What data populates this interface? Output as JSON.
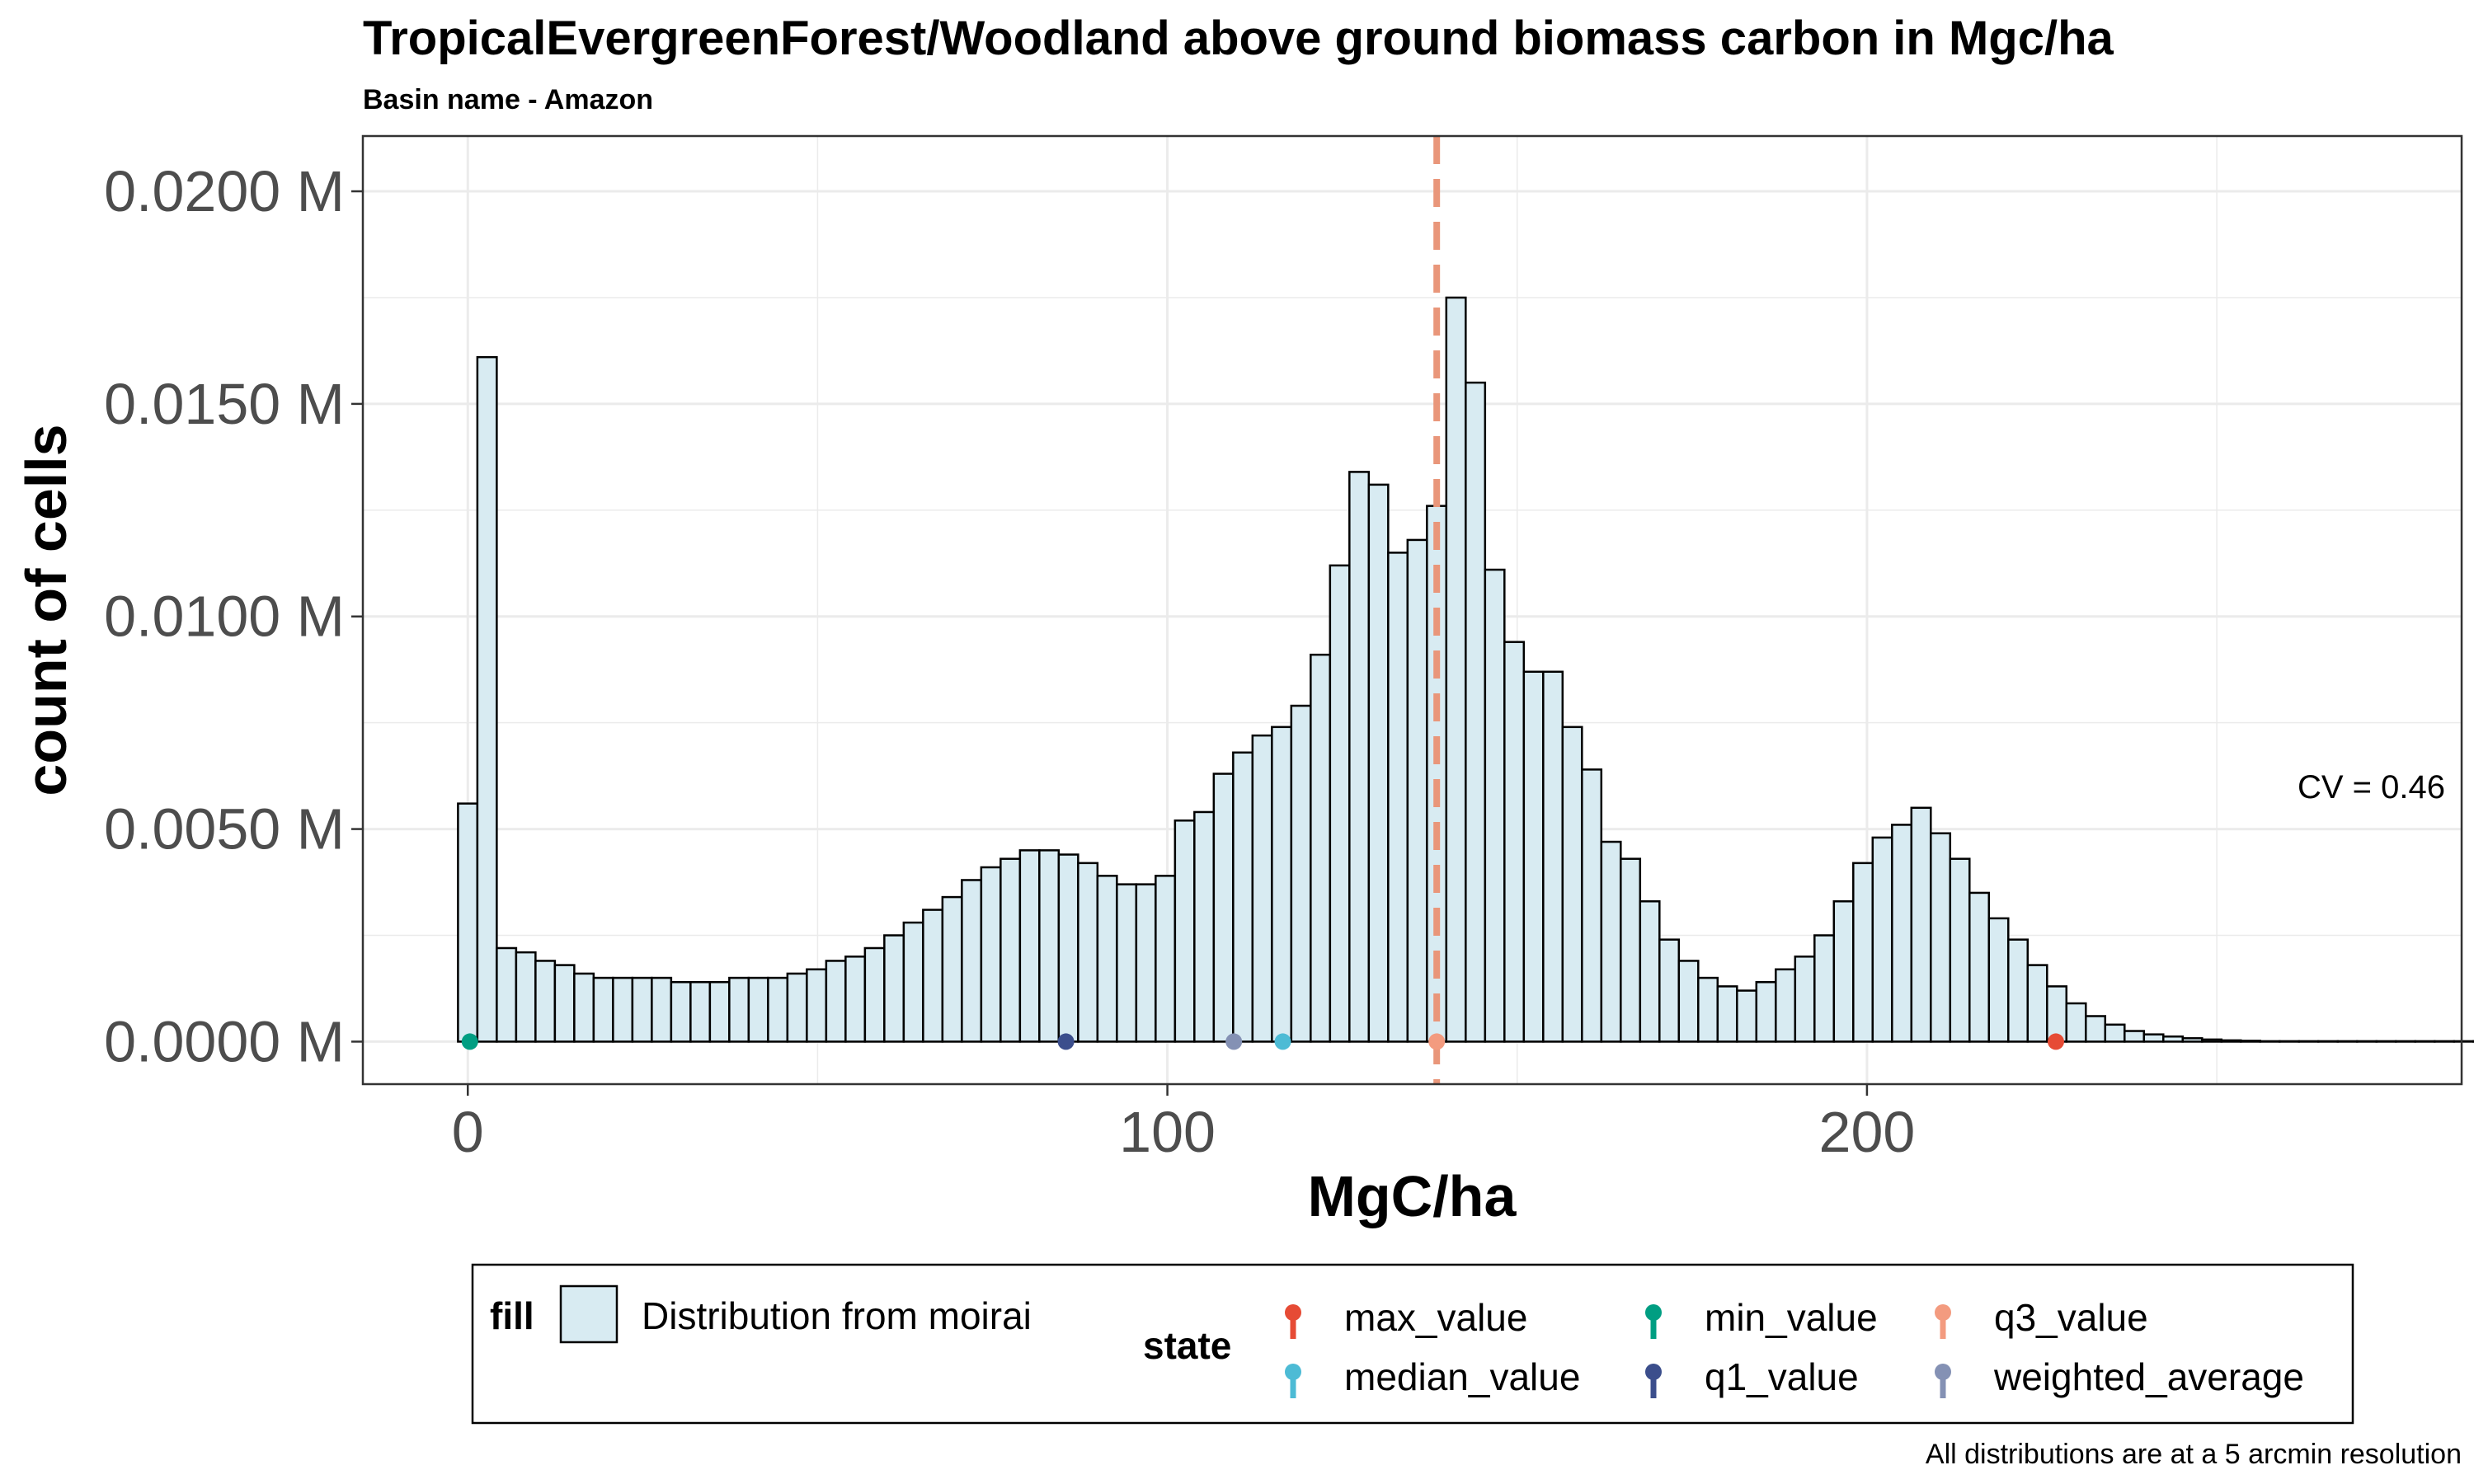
{
  "chart_data": {
    "type": "histogram",
    "title": "TropicalEvergreenForest/Woodland above ground biomass carbon in Mgc/ha",
    "subtitle": "Basin name - Amazon",
    "xlabel": "MgC/ha",
    "ylabel": "count of cells",
    "xlim": [
      -15,
      285
    ],
    "ylim": [
      -0.001,
      0.0213
    ],
    "x_ticks": [
      0,
      100,
      200
    ],
    "x_tick_labels": [
      "0",
      "100",
      "200"
    ],
    "y_ticks": [
      0,
      0.005,
      0.01,
      0.015,
      0.02
    ],
    "y_tick_labels": [
      "0.0000 M",
      "0.0050 M",
      "0.0100 M",
      "0.0150 M",
      "0.0200 M"
    ],
    "grid": true,
    "bin_start": -1.4,
    "bin_width": 2.77,
    "fill_color": "#d8ebf2",
    "series": [
      {
        "name": "Distribution from moirai",
        "values": [
          0.0056,
          0.0161,
          0.0022,
          0.0021,
          0.0019,
          0.0018,
          0.0016,
          0.0015,
          0.0015,
          0.0015,
          0.0015,
          0.0014,
          0.0014,
          0.0014,
          0.0015,
          0.0015,
          0.0015,
          0.0016,
          0.0017,
          0.0019,
          0.002,
          0.0022,
          0.0025,
          0.0028,
          0.0031,
          0.0034,
          0.0038,
          0.0041,
          0.0043,
          0.0045,
          0.0045,
          0.0044,
          0.0042,
          0.0039,
          0.0037,
          0.0037,
          0.0039,
          0.0052,
          0.0054,
          0.0063,
          0.0068,
          0.0072,
          0.0074,
          0.0079,
          0.0091,
          0.0112,
          0.0134,
          0.0131,
          0.0115,
          0.0118,
          0.0126,
          0.0175,
          0.0155,
          0.0111,
          0.0094,
          0.0087,
          0.0087,
          0.0074,
          0.0064,
          0.0047,
          0.0043,
          0.0033,
          0.0024,
          0.0019,
          0.0015,
          0.0013,
          0.0012,
          0.0014,
          0.0017,
          0.002,
          0.0025,
          0.0033,
          0.0042,
          0.0048,
          0.0051,
          0.0055,
          0.0049,
          0.0043,
          0.0035,
          0.0029,
          0.0024,
          0.0018,
          0.0013,
          0.0009,
          0.0006,
          0.0004,
          0.00025,
          0.00017,
          0.00012,
          8e-05,
          5e-05,
          3e-05,
          2e-05,
          1e-05,
          1e-05,
          1e-05,
          1e-05,
          1e-05,
          1e-05,
          1e-05,
          1e-05,
          1e-05,
          1e-05,
          1e-05,
          1e-05,
          1e-05,
          1e-05,
          1e-05,
          1e-05,
          1e-05,
          1e-05,
          1e-05,
          1e-05,
          1e-05,
          1e-05,
          1e-05,
          1e-05,
          1e-05,
          1e-05,
          1e-05,
          1e-05,
          1e-05,
          1e-05,
          1e-05,
          1e-05,
          1e-05,
          1e-05,
          1e-05,
          1e-05,
          1e-05,
          1e-05,
          1e-05,
          1e-05,
          1e-05,
          1e-05,
          1e-05,
          1e-05,
          1e-05,
          1e-05,
          1e-05,
          1e-05,
          1e-05,
          1e-05,
          1e-05,
          1e-05,
          1e-05,
          1e-05,
          1e-05,
          1e-05,
          1e-05
        ]
      }
    ],
    "stat_points": [
      {
        "name": "min_value",
        "x": 0.3,
        "color": "#009e82"
      },
      {
        "name": "q1_value",
        "x": 85.5,
        "color": "#3b4e8c"
      },
      {
        "name": "weighted_average",
        "x": 109.5,
        "color": "#8491b4"
      },
      {
        "name": "median_value",
        "x": 116.5,
        "color": "#4dbbd5"
      },
      {
        "name": "q3_value",
        "x": 138.5,
        "color": "#f39b7f"
      },
      {
        "name": "max_value",
        "x": 227,
        "color": "#e64b35"
      }
    ],
    "reference_line": {
      "x": 138.5,
      "color": "#e9967a",
      "style": "dashed"
    },
    "annotation": "CV = 0.46",
    "caption": "All distributions are at a 5 arcmin resolution",
    "legend": {
      "position": "bottom",
      "fill_title": "fill",
      "fill_label": "Distribution from moirai",
      "state_title": "state",
      "state_items": [
        {
          "label": "max_value",
          "color": "#e64b35"
        },
        {
          "label": "median_value",
          "color": "#4dbbd5"
        },
        {
          "label": "min_value",
          "color": "#009e82"
        },
        {
          "label": "q1_value",
          "color": "#3b4e8c"
        },
        {
          "label": "q3_value",
          "color": "#f39b7f"
        },
        {
          "label": "weighted_average",
          "color": "#8491b4"
        }
      ]
    }
  }
}
